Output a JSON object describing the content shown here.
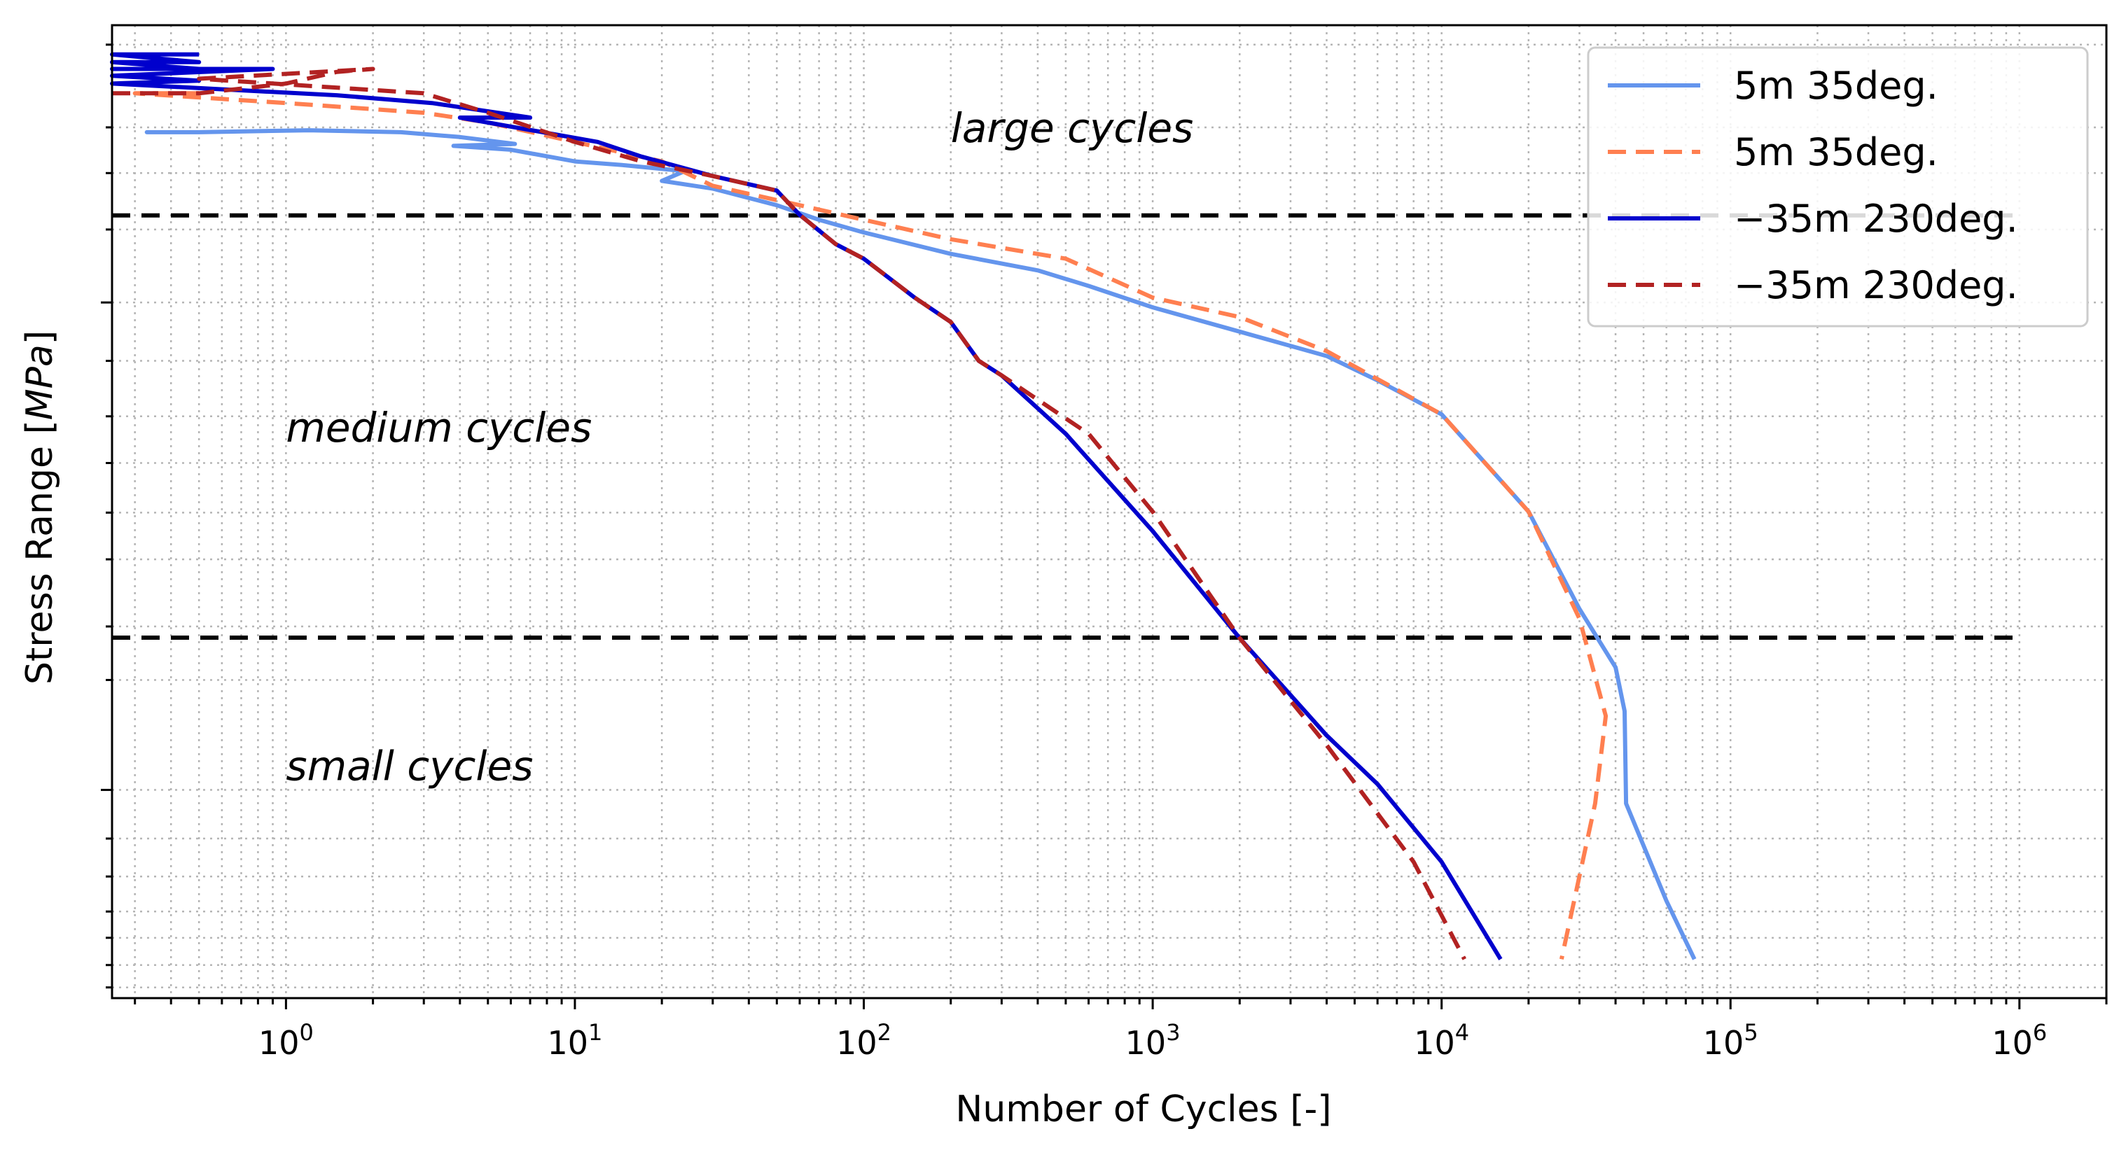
{
  "chart_data": {
    "type": "line",
    "xlabel": "Number of Cycles [-]",
    "ylabel_prefix": "Stress Range [",
    "ylabel_unit": "MPa",
    "ylabel_suffix": "]",
    "xscale": "log",
    "yscale": "log",
    "xlim": [
      0.25,
      2000000
    ],
    "ylim_axis_fraction": [
      0,
      1
    ],
    "grid": true,
    "legend_position": "top-right",
    "x_ticks": [
      {
        "base": "10",
        "exp": "0",
        "value": 1
      },
      {
        "base": "10",
        "exp": "1",
        "value": 10
      },
      {
        "base": "10",
        "exp": "2",
        "value": 100
      },
      {
        "base": "10",
        "exp": "3",
        "value": 1000
      },
      {
        "base": "10",
        "exp": "4",
        "value": 10000
      },
      {
        "base": "10",
        "exp": "5",
        "value": 100000
      },
      {
        "base": "10",
        "exp": "6",
        "value": 1000000
      }
    ],
    "y_axis_note": "stress values are relative positions on a log axis (0 = bottom, 1 = top); no numeric tick labels are shown",
    "y_major_ticks": [
      0.715,
      0.214
    ],
    "y_minor_ticks": [
      0.98,
      0.895,
      0.848,
      0.79,
      0.655,
      0.598,
      0.55,
      0.499,
      0.451,
      0.382,
      0.327,
      0.164,
      0.125,
      0.089,
      0.062,
      0.034,
      0.011
    ],
    "thresholds": [
      {
        "name": "large-medium",
        "y": 0.8045,
        "x_range": [
          0.25,
          1000000
        ],
        "color": "#000000",
        "style": "dashed"
      },
      {
        "name": "medium-small",
        "y": 0.3705,
        "x_range": [
          0.25,
          1000000
        ],
        "color": "#000000",
        "style": "dashed"
      }
    ],
    "annotations": [
      {
        "text": "large cycles",
        "x": 200,
        "y": 0.88
      },
      {
        "text": "medium cycles",
        "x": 1,
        "y": 0.572
      },
      {
        "text": "small cycles",
        "x": 1,
        "y": 0.224
      }
    ],
    "series": [
      {
        "name": "5m 35deg.",
        "color": "#6495ED",
        "style": "solid",
        "points": [
          [
            0.5,
            0.89
          ],
          [
            0.33,
            0.89
          ],
          [
            0.5,
            0.89
          ],
          [
            1.2,
            0.892
          ],
          [
            2.5,
            0.89
          ],
          [
            4,
            0.885
          ],
          [
            6.2,
            0.878
          ],
          [
            3.8,
            0.876
          ],
          [
            6,
            0.872
          ],
          [
            10,
            0.86
          ],
          [
            15,
            0.856
          ],
          [
            24,
            0.85
          ],
          [
            20,
            0.84
          ],
          [
            30,
            0.832
          ],
          [
            50,
            0.815
          ],
          [
            70,
            0.8
          ],
          [
            100,
            0.787
          ],
          [
            200,
            0.765
          ],
          [
            400,
            0.748
          ],
          [
            600,
            0.732
          ],
          [
            1000,
            0.71
          ],
          [
            2000,
            0.685
          ],
          [
            4000,
            0.66
          ],
          [
            6000,
            0.635
          ],
          [
            10000,
            0.6
          ],
          [
            20000,
            0.5
          ],
          [
            30000,
            0.4
          ],
          [
            40000,
            0.34
          ],
          [
            43000,
            0.295
          ],
          [
            43500,
            0.2
          ],
          [
            60000,
            0.1
          ],
          [
            75000,
            0.04
          ]
        ]
      },
      {
        "name": "5m 35deg.",
        "color": "#FF7F50",
        "style": "dashed",
        "points": [
          [
            0.5,
            0.93
          ],
          [
            0.3,
            0.93
          ],
          [
            1,
            0.92
          ],
          [
            3,
            0.91
          ],
          [
            5,
            0.9
          ],
          [
            10,
            0.88
          ],
          [
            20,
            0.86
          ],
          [
            30,
            0.835
          ],
          [
            60,
            0.815
          ],
          [
            100,
            0.8
          ],
          [
            200,
            0.78
          ],
          [
            500,
            0.76
          ],
          [
            1000,
            0.72
          ],
          [
            2000,
            0.7
          ],
          [
            4000,
            0.665
          ],
          [
            10000,
            0.6
          ],
          [
            20000,
            0.5
          ],
          [
            30000,
            0.39
          ],
          [
            37000,
            0.29
          ],
          [
            34000,
            0.2
          ],
          [
            26000,
            0.04
          ]
        ]
      },
      {
        "name": "−35m 230deg.",
        "color": "#0000CD",
        "style": "solid",
        "points": [
          [
            0.5,
            0.97
          ],
          [
            0.25,
            0.97
          ],
          [
            0.5,
            0.962
          ],
          [
            0.25,
            0.962
          ],
          [
            0.5,
            0.955
          ],
          [
            0.25,
            0.955
          ],
          [
            0.9,
            0.955
          ],
          [
            0.25,
            0.948
          ],
          [
            0.5,
            0.943
          ],
          [
            0.25,
            0.94
          ],
          [
            1.5,
            0.928
          ],
          [
            3.2,
            0.92
          ],
          [
            7,
            0.905
          ],
          [
            4,
            0.905
          ],
          [
            12,
            0.88
          ],
          [
            17,
            0.865
          ],
          [
            30,
            0.845
          ],
          [
            50,
            0.83
          ],
          [
            60,
            0.805
          ],
          [
            80,
            0.775
          ],
          [
            100,
            0.76
          ],
          [
            150,
            0.72
          ],
          [
            200,
            0.695
          ],
          [
            250,
            0.655
          ],
          [
            300,
            0.64
          ],
          [
            500,
            0.58
          ],
          [
            1000,
            0.48
          ],
          [
            2000,
            0.37
          ],
          [
            4000,
            0.27
          ],
          [
            6000,
            0.22
          ],
          [
            10000,
            0.14
          ],
          [
            16000,
            0.04
          ]
        ]
      },
      {
        "name": "−35m 230deg.",
        "color": "#B22222",
        "style": "dashed",
        "points": [
          [
            0.25,
            0.93
          ],
          [
            0.5,
            0.93
          ],
          [
            1,
            0.94
          ],
          [
            1.5,
            0.952
          ],
          [
            2,
            0.955
          ],
          [
            0.5,
            0.945
          ],
          [
            3,
            0.93
          ],
          [
            5,
            0.91
          ],
          [
            10,
            0.88
          ],
          [
            17,
            0.86
          ],
          [
            30,
            0.845
          ],
          [
            50,
            0.83
          ],
          [
            60,
            0.805
          ],
          [
            80,
            0.775
          ],
          [
            100,
            0.76
          ],
          [
            150,
            0.72
          ],
          [
            200,
            0.695
          ],
          [
            250,
            0.655
          ],
          [
            300,
            0.64
          ],
          [
            600,
            0.58
          ],
          [
            1000,
            0.5
          ],
          [
            2000,
            0.37
          ],
          [
            4000,
            0.26
          ],
          [
            8000,
            0.14
          ],
          [
            12000,
            0.04
          ]
        ]
      }
    ]
  }
}
